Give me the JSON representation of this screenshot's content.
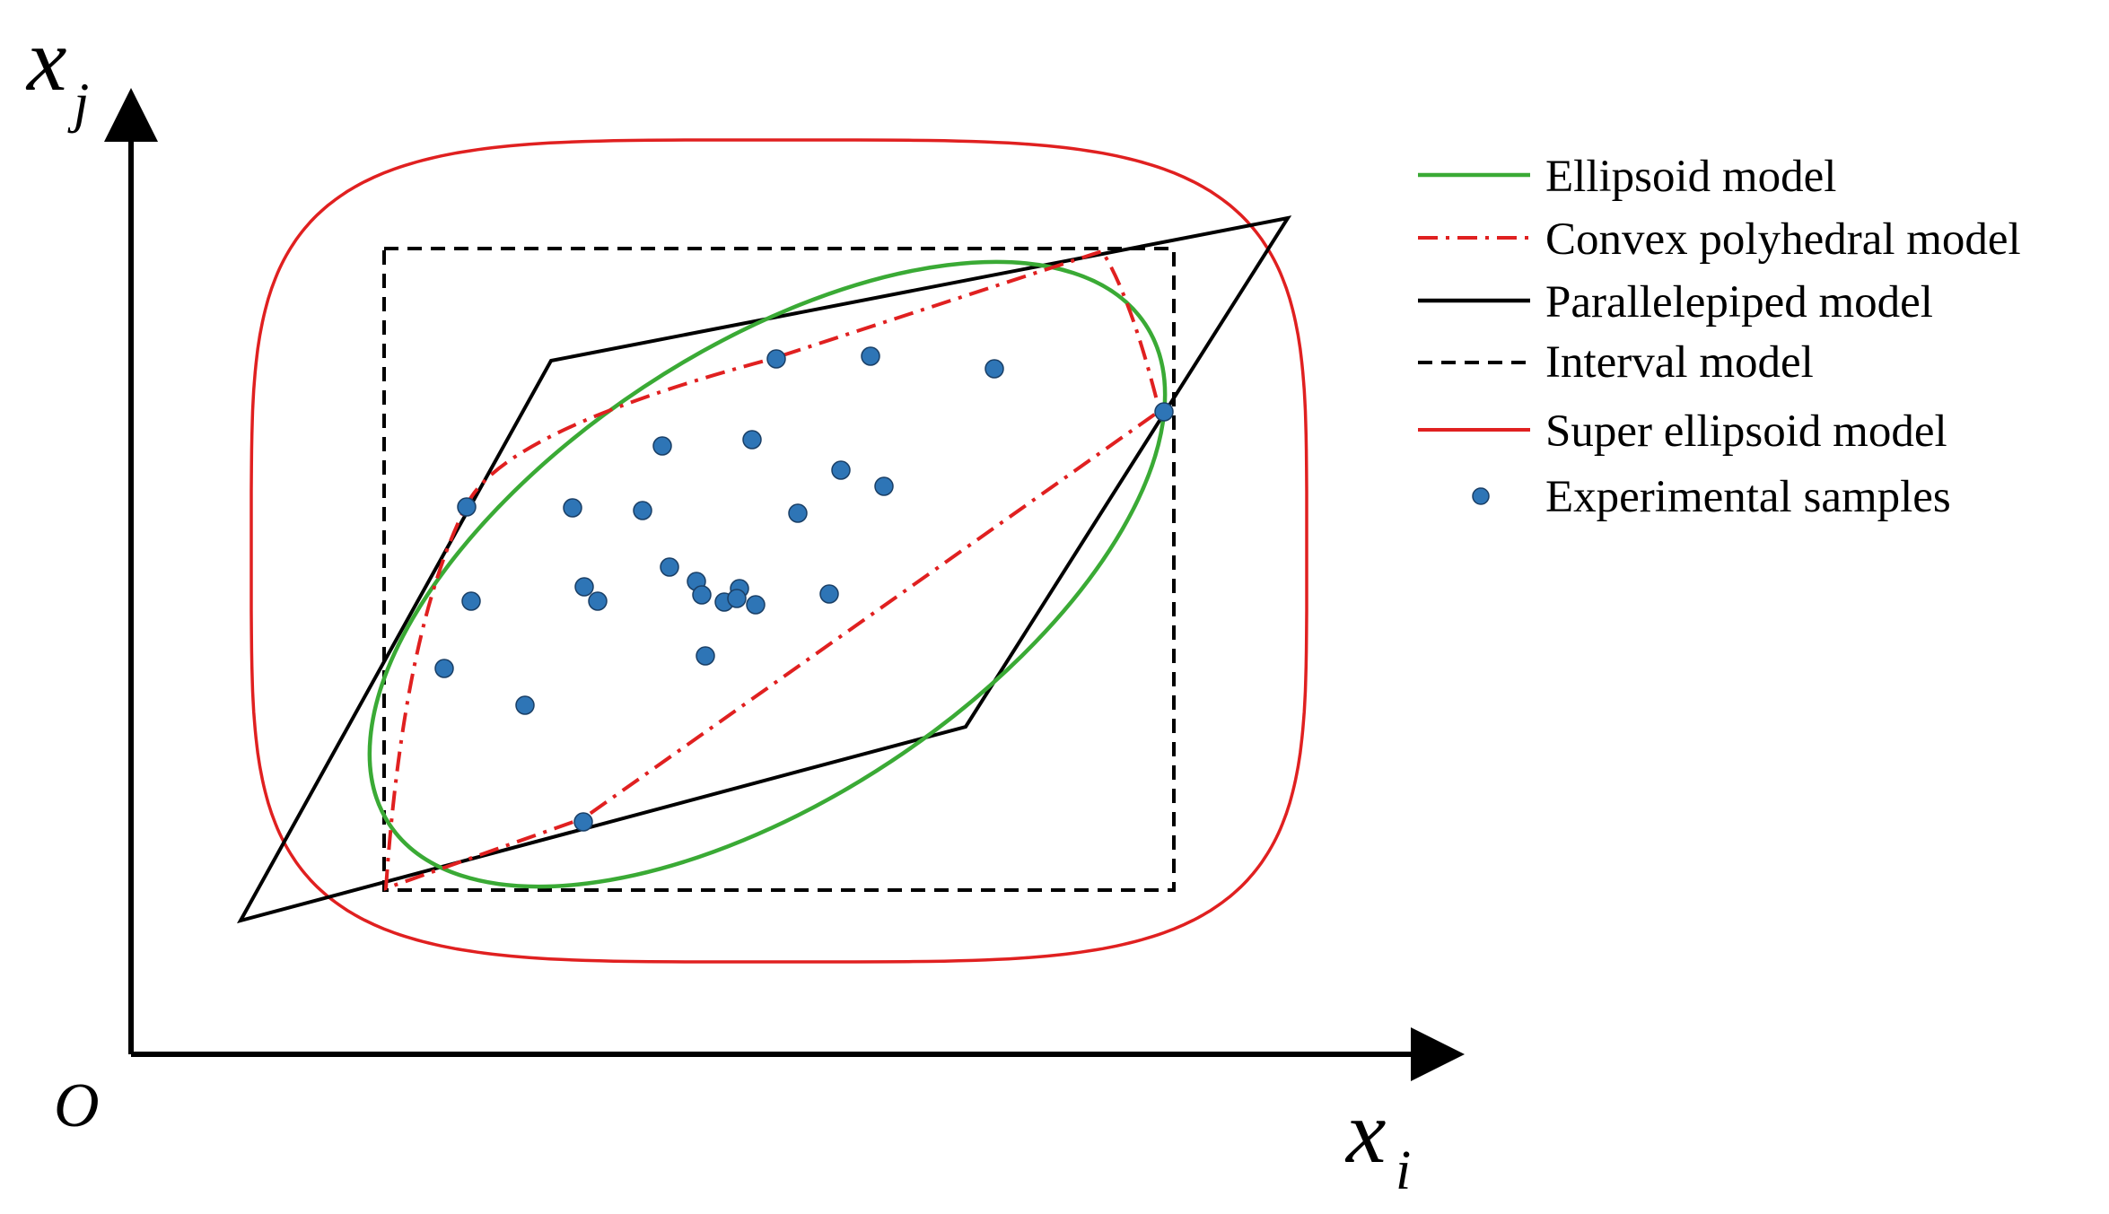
{
  "axes": {
    "x_label": "x",
    "x_subscript": "i",
    "y_label": "x",
    "y_subscript": "j",
    "origin_label": "O"
  },
  "legend": {
    "items": [
      {
        "label": "Ellipsoid model",
        "style": "solid",
        "color": "#3aaa35"
      },
      {
        "label": "Convex polyhedral model",
        "style": "dashdot",
        "color": "#e02020"
      },
      {
        "label": "Parallelepiped model",
        "style": "solid",
        "color": "#000000"
      },
      {
        "label": "Interval model",
        "style": "dashed",
        "color": "#000000"
      },
      {
        "label": "Super ellipsoid model",
        "style": "solid",
        "color": "#e02020"
      },
      {
        "label": "Experimental samples",
        "style": "marker",
        "color": "#2e75b6"
      }
    ]
  },
  "colors": {
    "ellipsoid": "#3aaa35",
    "convex": "#e02020",
    "parallelepiped": "#000000",
    "interval": "#000000",
    "super_ellipsoid": "#e02020",
    "samples": "#2e75b6",
    "axes": "#000000"
  }
}
